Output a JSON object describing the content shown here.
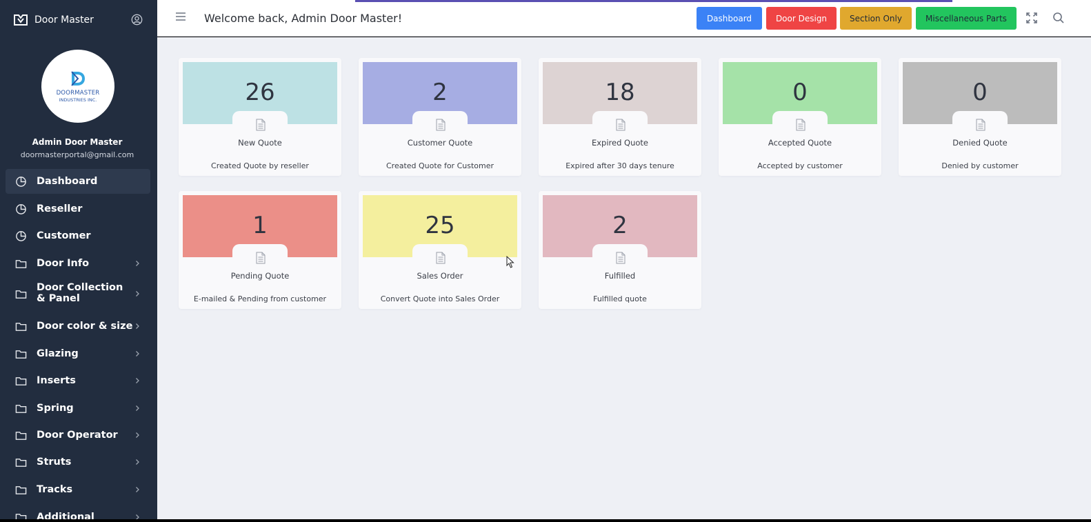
{
  "app": {
    "title": "Door Master"
  },
  "logo": {
    "line1": "DOORMASTER",
    "line2": "INDUSTRIES INC."
  },
  "user": {
    "name": "Admin Door Master",
    "email": "doormasterportal@gmail.com"
  },
  "sidebar": {
    "items": [
      {
        "label": "Dashboard",
        "icon": "pie-chart-icon",
        "active": true
      },
      {
        "label": "Reseller",
        "icon": "pie-chart-icon"
      },
      {
        "label": "Customer",
        "icon": "pie-chart-icon"
      },
      {
        "label": "Door Info",
        "icon": "folder-icon",
        "has_submenu": true
      },
      {
        "label": "Door Collection & Panel",
        "icon": "folder-icon",
        "has_submenu": true
      },
      {
        "label": "Door color & size",
        "icon": "folder-icon",
        "has_submenu": true
      },
      {
        "label": "Glazing",
        "icon": "folder-icon",
        "has_submenu": true
      },
      {
        "label": "Inserts",
        "icon": "folder-icon",
        "has_submenu": true
      },
      {
        "label": "Spring",
        "icon": "folder-icon",
        "has_submenu": true
      },
      {
        "label": "Door Operator",
        "icon": "folder-icon",
        "has_submenu": true
      },
      {
        "label": "Struts",
        "icon": "folder-icon",
        "has_submenu": true
      },
      {
        "label": "Tracks",
        "icon": "folder-icon",
        "has_submenu": true
      },
      {
        "label": "Additional",
        "icon": "folder-icon",
        "has_submenu": true
      }
    ]
  },
  "header": {
    "welcome": "Welcome back, Admin Door Master!",
    "buttons": [
      {
        "label": "Dashboard",
        "color": "#3b82f6",
        "text_color": "#ffffff"
      },
      {
        "label": "Door Design",
        "color": "#ef4444",
        "text_color": "#ffffff"
      },
      {
        "label": "Section Only",
        "color": "#e0a82e",
        "text_color": "#1f2937"
      },
      {
        "label": "Miscellaneous Parts",
        "color": "#22c55e",
        "text_color": "#1f2937"
      }
    ]
  },
  "cards": [
    {
      "count": "26",
      "title": "New Quote",
      "desc": "Created Quote by reseller",
      "color": "#bde1e4"
    },
    {
      "count": "2",
      "title": "Customer Quote",
      "desc": "Created Quote for Customer",
      "color": "#a6ade3"
    },
    {
      "count": "18",
      "title": "Expired Quote",
      "desc": "Expired after 30 days tenure",
      "color": "#ddd3d3"
    },
    {
      "count": "0",
      "title": "Accepted Quote",
      "desc": "Accepted by customer",
      "color": "#a5e2a8"
    },
    {
      "count": "0",
      "title": "Denied Quote",
      "desc": "Denied by customer",
      "color": "#bcbcbc"
    },
    {
      "count": "1",
      "title": "Pending Quote",
      "desc": "E-mailed & Pending from customer",
      "color": "#eb8f88"
    },
    {
      "count": "25",
      "title": "Sales Order",
      "desc": "Convert Quote into Sales Order",
      "color": "#f4ef9e"
    },
    {
      "count": "2",
      "title": "Fulfilled",
      "desc": "Fulfilled quote",
      "color": "#e2b8c0"
    }
  ]
}
